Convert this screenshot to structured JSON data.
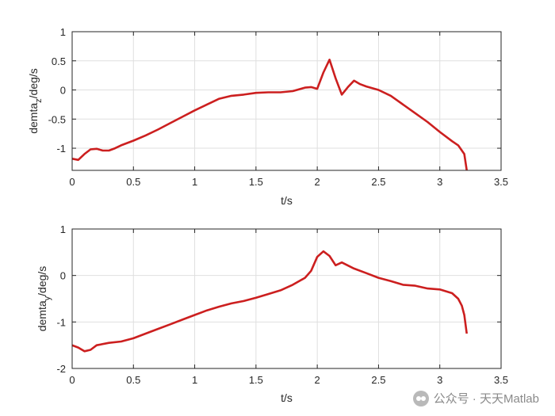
{
  "chart_data": [
    {
      "type": "line",
      "xlabel": "t/s",
      "ylabel": "demta",
      "ylabel_sub": "z",
      "ylabel_unit": "/deg/s",
      "xlim": [
        0,
        3.5
      ],
      "ylim": [
        -1.38,
        1
      ],
      "xticks": [
        "0",
        "0.5",
        "1",
        "1.5",
        "2",
        "2.5",
        "3",
        "3.5"
      ],
      "yticks": [
        "1",
        "0.5",
        "0",
        "-0.5",
        "-1"
      ],
      "ytick_values": [
        1,
        0.5,
        0,
        -0.5,
        -1
      ],
      "grid": true,
      "line_color": "#cc1f1f",
      "series": [
        {
          "x": [
            0,
            0.05,
            0.1,
            0.15,
            0.2,
            0.25,
            0.3,
            0.35,
            0.4,
            0.5,
            0.6,
            0.7,
            0.8,
            0.9,
            1.0,
            1.1,
            1.2,
            1.3,
            1.4,
            1.5,
            1.6,
            1.7,
            1.8,
            1.9,
            1.95,
            2.0,
            2.05,
            2.1,
            2.15,
            2.2,
            2.25,
            2.3,
            2.35,
            2.4,
            2.5,
            2.6,
            2.7,
            2.8,
            2.9,
            3.0,
            3.1,
            3.15,
            3.2,
            3.22
          ],
          "y": [
            -1.18,
            -1.2,
            -1.1,
            -1.02,
            -1.01,
            -1.04,
            -1.04,
            -1.0,
            -0.95,
            -0.87,
            -0.78,
            -0.68,
            -0.57,
            -0.46,
            -0.35,
            -0.25,
            -0.15,
            -0.1,
            -0.08,
            -0.05,
            -0.04,
            -0.04,
            -0.02,
            0.04,
            0.05,
            0.02,
            0.3,
            0.52,
            0.2,
            -0.08,
            0.05,
            0.16,
            0.1,
            0.06,
            0.0,
            -0.1,
            -0.25,
            -0.4,
            -0.55,
            -0.72,
            -0.88,
            -0.95,
            -1.1,
            -1.38
          ]
        }
      ]
    },
    {
      "type": "line",
      "xlabel": "t/s",
      "ylabel": "demta",
      "ylabel_sub": "y",
      "ylabel_unit": "/deg/s",
      "xlim": [
        0,
        3.5
      ],
      "ylim": [
        -2,
        1
      ],
      "xticks": [
        "0",
        "0.5",
        "1",
        "1.5",
        "2",
        "2.5",
        "3",
        "3.5"
      ],
      "yticks": [
        "1",
        "0",
        "-1",
        "-2"
      ],
      "ytick_values": [
        1,
        0,
        -1,
        -2
      ],
      "grid": true,
      "line_color": "#cc1f1f",
      "series": [
        {
          "x": [
            0,
            0.05,
            0.1,
            0.15,
            0.2,
            0.3,
            0.4,
            0.5,
            0.6,
            0.7,
            0.8,
            0.9,
            1.0,
            1.1,
            1.2,
            1.3,
            1.4,
            1.5,
            1.6,
            1.7,
            1.8,
            1.9,
            1.95,
            2.0,
            2.05,
            2.1,
            2.15,
            2.2,
            2.3,
            2.4,
            2.5,
            2.6,
            2.7,
            2.8,
            2.9,
            3.0,
            3.1,
            3.15,
            3.18,
            3.2,
            3.22
          ],
          "y": [
            -1.5,
            -1.55,
            -1.63,
            -1.6,
            -1.5,
            -1.45,
            -1.42,
            -1.35,
            -1.25,
            -1.15,
            -1.05,
            -0.95,
            -0.85,
            -0.75,
            -0.67,
            -0.6,
            -0.55,
            -0.48,
            -0.4,
            -0.32,
            -0.2,
            -0.05,
            0.1,
            0.4,
            0.52,
            0.42,
            0.22,
            0.28,
            0.15,
            0.05,
            -0.05,
            -0.12,
            -0.2,
            -0.22,
            -0.28,
            -0.3,
            -0.38,
            -0.5,
            -0.65,
            -0.85,
            -1.25
          ]
        }
      ]
    }
  ],
  "watermark": {
    "icon": "wechat-icon",
    "text": "公众号 · 天天Matlab"
  }
}
